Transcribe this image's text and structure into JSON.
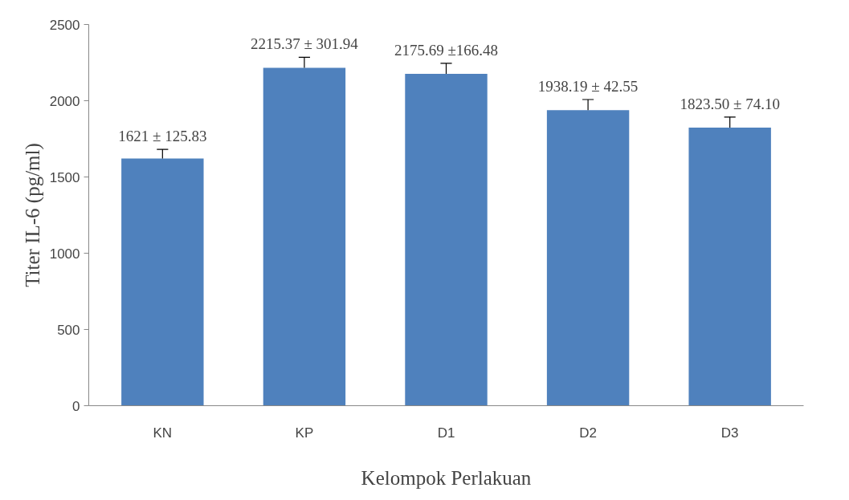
{
  "chart_data": {
    "type": "bar",
    "xlabel": "Kelompok Perlakuan",
    "ylabel": "Titer IL-6 (pg/ml)",
    "categories": [
      "KN",
      "KP",
      "D1",
      "D2",
      "D3"
    ],
    "values": [
      1621,
      2215.37,
      2175.69,
      1938.19,
      1823.5
    ],
    "color": "#4f81bd",
    "errors": [
      [
        1621,
        1681
      ],
      [
        2215.37,
        2285
      ],
      [
        2175.69,
        2245
      ],
      [
        1938.19,
        2008
      ],
      [
        1823.5,
        1893
      ]
    ],
    "value_labels": [
      "1621 ± 125.83",
      "2215.37 ± 301.94",
      "2175.69 ±166.48",
      "1938.19 ± 42.55",
      "1823.50 ± 74.10"
    ],
    "ylim": [
      0,
      2500
    ],
    "yticks": [
      0,
      500,
      1000,
      1500,
      2000,
      2500
    ],
    "grid": false
  }
}
